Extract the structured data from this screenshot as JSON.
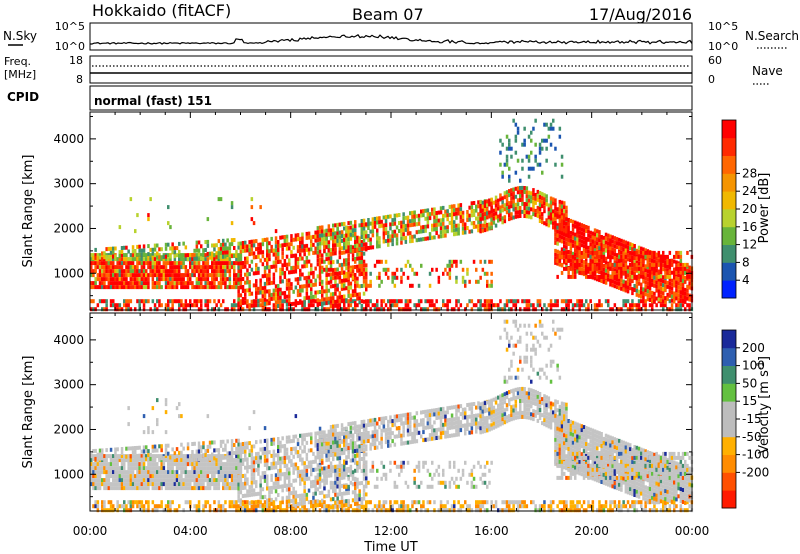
{
  "header": {
    "station": "Hokkaido (fitACF)",
    "beam": "Beam 07",
    "date": "17/Aug/2016"
  },
  "panels": {
    "nsky": {
      "left_label": "N.Sky",
      "right_label": "N.Search",
      "ticks": [
        "10^5",
        "10^0"
      ],
      "right_ticks": [
        "10^5",
        "10^0"
      ]
    },
    "freq": {
      "left_label_1": "Freq.",
      "left_label_2": "[MHz]",
      "left_ticks": [
        "18",
        "8"
      ],
      "right_ticks": [
        "60",
        "0"
      ],
      "right_label": "Nave"
    },
    "cpid": {
      "left_label": "CPID",
      "text": "normal (fast) 151"
    }
  },
  "chart_data": [
    {
      "type": "heatmap",
      "title": "",
      "quantity": "Power",
      "ylabel": "Slant Range [km]",
      "xlabel": "",
      "ylim": [
        180,
        4600
      ],
      "yticks": [
        1000,
        2000,
        3000,
        4000
      ],
      "colorbar": {
        "label": "Power [dB]",
        "ticks": [
          "4",
          "8",
          "12",
          "16",
          "20",
          "24",
          "28"
        ],
        "colors": [
          "#0022ff",
          "#1b55b0",
          "#3f8f6e",
          "#68b43a",
          "#b8d22e",
          "#f0b800",
          "#f59400",
          "#ff6600",
          "#ff2a00",
          "#ff0000"
        ]
      },
      "regions": [
        {
          "t0": 0.0,
          "t1": 6.0,
          "r0": 700,
          "r1": 1500,
          "dominant": "red-orange",
          "density": 0.85
        },
        {
          "t0": 0.0,
          "t1": 6.0,
          "r0": 1300,
          "r1": 1800,
          "dominant": "green",
          "density": 0.6
        },
        {
          "t0": 6.0,
          "t1": 11.0,
          "r0": 300,
          "r1": 1900,
          "dominant": "red-orange",
          "density": 0.55
        },
        {
          "t0": 9.0,
          "t1": 16.0,
          "r0": 1700,
          "r1": 2500,
          "dominant": "green-orange",
          "density": 0.6
        },
        {
          "t0": 16.0,
          "t1": 19.0,
          "r0": 2000,
          "r1": 2900,
          "dominant": "red-orange",
          "density": 0.75
        },
        {
          "t0": 19.0,
          "t1": 24.0,
          "r0": 400,
          "r1": 2200,
          "dominant": "red",
          "density": 0.85
        },
        {
          "t0": 16.5,
          "t1": 18.5,
          "r0": 3200,
          "r1": 4500,
          "dominant": "green-blue",
          "density": 0.2
        }
      ]
    },
    {
      "type": "heatmap",
      "title": "",
      "quantity": "Velocity",
      "ylabel": "Slant Range [km]",
      "xlabel": "Time UT",
      "xticks": [
        "00:00",
        "04:00",
        "08:00",
        "12:00",
        "16:00",
        "20:00",
        "00:00"
      ],
      "xlim": [
        0,
        24
      ],
      "ylim": [
        180,
        4600
      ],
      "yticks": [
        1000,
        2000,
        3000,
        4000
      ],
      "colorbar": {
        "label": "Velocity [m s",
        "label_sup": "-1",
        "label_end": "]",
        "ticks": [
          "200",
          "100",
          "50",
          "15",
          "-15",
          "-50",
          "-100",
          "-200"
        ],
        "colors": [
          "#1a2a9a",
          "#2e5fb0",
          "#3f8f6e",
          "#63c040",
          "#bdbdbd",
          "#bdbdbd",
          "#ffb000",
          "#ff8c00",
          "#ff5000",
          "#ff1a00"
        ]
      }
    }
  ],
  "time_axis": {
    "ticks": [
      "00:00",
      "04:00",
      "08:00",
      "12:00",
      "16:00",
      "20:00",
      "00:00"
    ],
    "label": "Time UT"
  }
}
